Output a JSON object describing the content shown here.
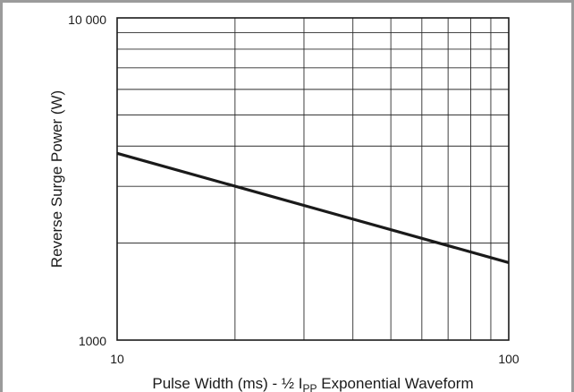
{
  "chart_data": {
    "type": "line",
    "title": "",
    "xlabel": {
      "prefix": "Pulse Width (ms) - ½ I",
      "subscript": "PP",
      "suffix": " Exponential Waveform"
    },
    "ylabel": "Reverse Surge Power (W)",
    "x_scale": "log",
    "y_scale": "log",
    "xlim": [
      10,
      100
    ],
    "ylim": [
      1000,
      10000
    ],
    "x_tick_labels": [
      "10",
      "100"
    ],
    "y_tick_labels": [
      "1000",
      "10 000"
    ],
    "grid": true,
    "series": [
      {
        "x": [
          10,
          100
        ],
        "y": [
          3800,
          1740
        ]
      }
    ],
    "colors": {
      "line": "#1a1a1a",
      "grid": "#2b2b2b",
      "frame": "#9b9b9b"
    }
  }
}
